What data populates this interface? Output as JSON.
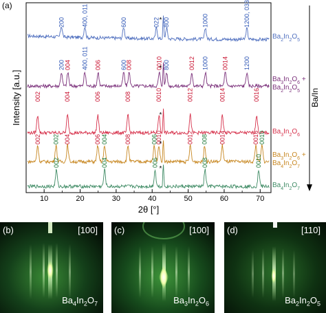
{
  "panel_a": {
    "label": "(a)",
    "ylabel": "Intensity [a.u.]",
    "xlabel": "2θ [°]",
    "xticks": [
      10,
      20,
      30,
      40,
      50,
      60,
      70
    ],
    "xlim": [
      5,
      73
    ],
    "trend_label": "Ba/In",
    "substrate_marker": "*",
    "traces": [
      {
        "name": "Ba2In2O5",
        "color": "#4f6fbf",
        "label_parts": [
          [
            "Ba",
            "2"
          ],
          [
            "In",
            "2"
          ],
          [
            "O",
            "5"
          ]
        ],
        "peaks": [
          {
            "pos": 14.8,
            "label": "200",
            "color": "#2d55b5"
          },
          {
            "pos": 21.3,
            "label": "400, 011",
            "color": "#2d55b5"
          },
          {
            "pos": 32.1,
            "label": "600",
            "color": "#2d55b5"
          },
          {
            "pos": 41.2,
            "label": "022",
            "color": "#2d55b5"
          },
          {
            "pos": 44.0,
            "label": "800",
            "color": "#2d55b5"
          },
          {
            "pos": 54.8,
            "label": "1000",
            "color": "#2d55b5"
          },
          {
            "pos": 66.3,
            "label": "1200, 033",
            "color": "#2d55b5"
          }
        ]
      },
      {
        "name": "Ba3In2O6 + Ba2In2O5",
        "color": "#7a2f7a",
        "label_parts": [
          [
            "Ba",
            "3"
          ],
          [
            "In",
            "2"
          ],
          [
            "O",
            "6"
          ],
          [
            " +",
            ""
          ]
        ],
        "label_parts2": [
          [
            "Ba",
            "2"
          ],
          [
            "In",
            "2"
          ],
          [
            "O",
            "5"
          ]
        ],
        "peaks": [
          {
            "pos": 14.8,
            "label": "200",
            "color": "#2d55b5"
          },
          {
            "pos": 16.6,
            "label": "004",
            "color": "#c8102e"
          },
          {
            "pos": 21.3,
            "label": "400, 011",
            "color": "#2d55b5"
          },
          {
            "pos": 25.0,
            "label": "006",
            "color": "#c8102e"
          },
          {
            "pos": 32.1,
            "label": "600",
            "color": "#2d55b5"
          },
          {
            "pos": 33.6,
            "label": "008",
            "color": "#c8102e"
          },
          {
            "pos": 42.0,
            "label": "0010",
            "color": "#c8102e"
          },
          {
            "pos": 44.0,
            "label": "800",
            "color": "#2d55b5"
          },
          {
            "pos": 51.0,
            "label": "0012",
            "color": "#c8102e"
          },
          {
            "pos": 54.8,
            "label": "1000",
            "color": "#2d55b5"
          },
          {
            "pos": 60.3,
            "label": "0014",
            "color": "#c8102e"
          },
          {
            "pos": 66.3,
            "label": "1200",
            "color": "#2d55b5"
          }
        ]
      },
      {
        "name": "Ba3In2O6",
        "color": "#d6304a",
        "label_parts": [
          [
            "Ba",
            "3"
          ],
          [
            "In",
            "2"
          ],
          [
            "O",
            "6"
          ]
        ],
        "peaks": [
          {
            "pos": 8.2,
            "label": "002",
            "color": "#c8102e"
          },
          {
            "pos": 16.5,
            "label": "004",
            "color": "#c8102e"
          },
          {
            "pos": 24.9,
            "label": "006",
            "color": "#c8102e"
          },
          {
            "pos": 33.3,
            "label": "008",
            "color": "#c8102e"
          },
          {
            "pos": 41.9,
            "label": "0010",
            "color": "#c8102e"
          },
          {
            "pos": 50.6,
            "label": "0012",
            "color": "#c8102e"
          },
          {
            "pos": 59.5,
            "label": "0014",
            "color": "#c8102e"
          },
          {
            "pos": 69.0,
            "label": "0016",
            "color": "#c8102e"
          }
        ]
      },
      {
        "name": "Ba3In2O6 + Ba4In2O7",
        "color": "#c7861f",
        "label_parts": [
          [
            "Ba",
            "3"
          ],
          [
            "In",
            "2"
          ],
          [
            "O",
            "6"
          ],
          [
            " +",
            ""
          ]
        ],
        "label_parts2": [
          [
            "Ba",
            "4"
          ],
          [
            "In",
            "2"
          ],
          [
            "O",
            "7"
          ]
        ],
        "peaks": [
          {
            "pos": 8.2,
            "label": "002",
            "color": "#c8102e"
          },
          {
            "pos": 13.3,
            "label": "002",
            "color": "#1f7a3a"
          },
          {
            "pos": 16.5,
            "label": "004",
            "color": "#c8102e"
          },
          {
            "pos": 24.9,
            "label": "006",
            "color": "#c8102e"
          },
          {
            "pos": 26.8,
            "label": "004",
            "color": "#1f7a3a"
          },
          {
            "pos": 33.3,
            "label": "008",
            "color": "#c8102e"
          },
          {
            "pos": 40.6,
            "label": "006",
            "color": "#1f7a3a"
          },
          {
            "pos": 41.9,
            "label": "0010",
            "color": "#c8102e"
          },
          {
            "pos": 50.6,
            "label": "0012",
            "color": "#c8102e"
          },
          {
            "pos": 54.6,
            "label": "008",
            "color": "#1f7a3a"
          },
          {
            "pos": 59.5,
            "label": "0014",
            "color": "#c8102e"
          },
          {
            "pos": 68.8,
            "label": "0016",
            "color": "#c8102e"
          },
          {
            "pos": 70.5,
            "label": "0010",
            "color": "#1f7a3a"
          }
        ]
      },
      {
        "name": "Ba4In2O7",
        "color": "#3d8a63",
        "label_parts": [
          [
            "Ba",
            "4"
          ],
          [
            "In",
            "2"
          ],
          [
            "O",
            "7"
          ]
        ],
        "peaks": [
          {
            "pos": 13.4,
            "label": "002",
            "color": "#1f7a3a"
          },
          {
            "pos": 26.8,
            "label": "004",
            "color": "#1f7a3a"
          },
          {
            "pos": 40.8,
            "label": "006",
            "color": "#1f7a3a"
          },
          {
            "pos": 54.7,
            "label": "008",
            "color": "#1f7a3a"
          },
          {
            "pos": 69.6,
            "label": "0010",
            "color": "#1f7a3a"
          }
        ]
      }
    ]
  },
  "rheed_panels": [
    {
      "label": "(b)",
      "direction": "[100]",
      "formula_parts": [
        [
          "Ba",
          "4"
        ],
        [
          "In",
          "2"
        ],
        [
          "O",
          "7"
        ]
      ]
    },
    {
      "label": "(c)",
      "direction": "[100]",
      "formula_parts": [
        [
          "Ba",
          "3"
        ],
        [
          "In",
          "2"
        ],
        [
          "O",
          "6"
        ]
      ]
    },
    {
      "label": "(d)",
      "direction": "[110]",
      "formula_parts": [
        [
          "Ba",
          "2"
        ],
        [
          "In",
          "2"
        ],
        [
          "O",
          "5"
        ]
      ]
    }
  ]
}
